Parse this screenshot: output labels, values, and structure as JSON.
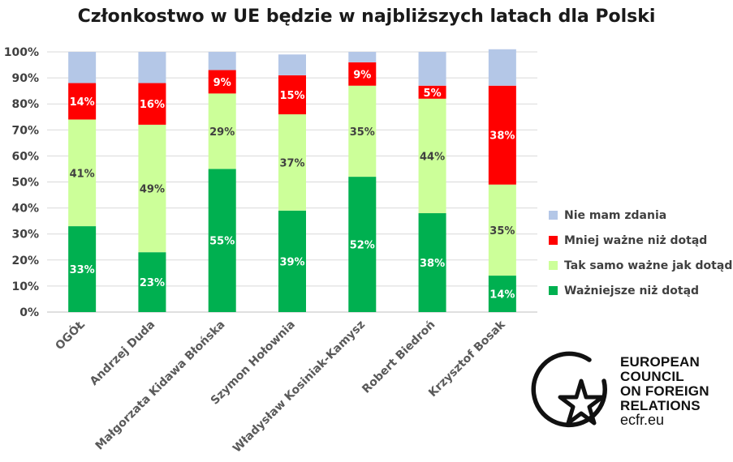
{
  "chart_data": {
    "type": "bar",
    "stacked": true,
    "title": "Członkostwo w UE będzie w najbliższych latach dla Polski",
    "categories": [
      "OGÓŁ",
      "Andrzej Duda",
      "Małgorzata Kidawa Błońska",
      "Szymon Hołownia",
      "Władysław Kosiniak-Kamysz",
      "Robert Biedroń",
      "Krzysztof Bosak"
    ],
    "series": [
      {
        "name": "Ważniejsze niż dotąd",
        "color": "#00b050",
        "values": [
          33,
          23,
          55,
          39,
          52,
          38,
          14
        ],
        "labels": [
          "33%",
          "23%",
          "55%",
          "39%",
          "52%",
          "38%",
          "14%"
        ]
      },
      {
        "name": "Tak samo ważne jak dotąd",
        "color": "#ccff99",
        "values": [
          41,
          49,
          29,
          37,
          35,
          44,
          35
        ],
        "labels": [
          "41%",
          "49%",
          "29%",
          "37%",
          "35%",
          "44%",
          "35%"
        ]
      },
      {
        "name": "Mniej ważne niż dotąd",
        "color": "#ff0000",
        "values": [
          14,
          16,
          9,
          15,
          9,
          5,
          38
        ],
        "labels": [
          "14%",
          "16%",
          "9%",
          "15%",
          "9%",
          "5%",
          "38%"
        ]
      },
      {
        "name": "Nie mam zdania",
        "color": "#b4c7e7",
        "values": [
          12,
          12,
          7,
          8,
          4,
          13,
          14
        ]
      }
    ],
    "ylim": [
      0,
      100
    ],
    "yticks": [
      "0%",
      "10%",
      "20%",
      "30%",
      "40%",
      "50%",
      "60%",
      "70%",
      "80%",
      "90%",
      "100%"
    ],
    "grid": true,
    "legend_position": "right"
  },
  "legend": [
    {
      "label": "Nie mam zdania",
      "color": "#b4c7e7"
    },
    {
      "label": "Mniej ważne niż dotąd",
      "color": "#ff0000"
    },
    {
      "label": "Tak samo ważne jak dotąd",
      "color": "#ccff99"
    },
    {
      "label": "Ważniejsze niż dotąd",
      "color": "#00b050"
    }
  ],
  "logo": {
    "lines": [
      "EUROPEAN",
      "COUNCIL",
      "ON FOREIGN",
      "RELATIONS"
    ],
    "url": "ecfr.eu"
  }
}
